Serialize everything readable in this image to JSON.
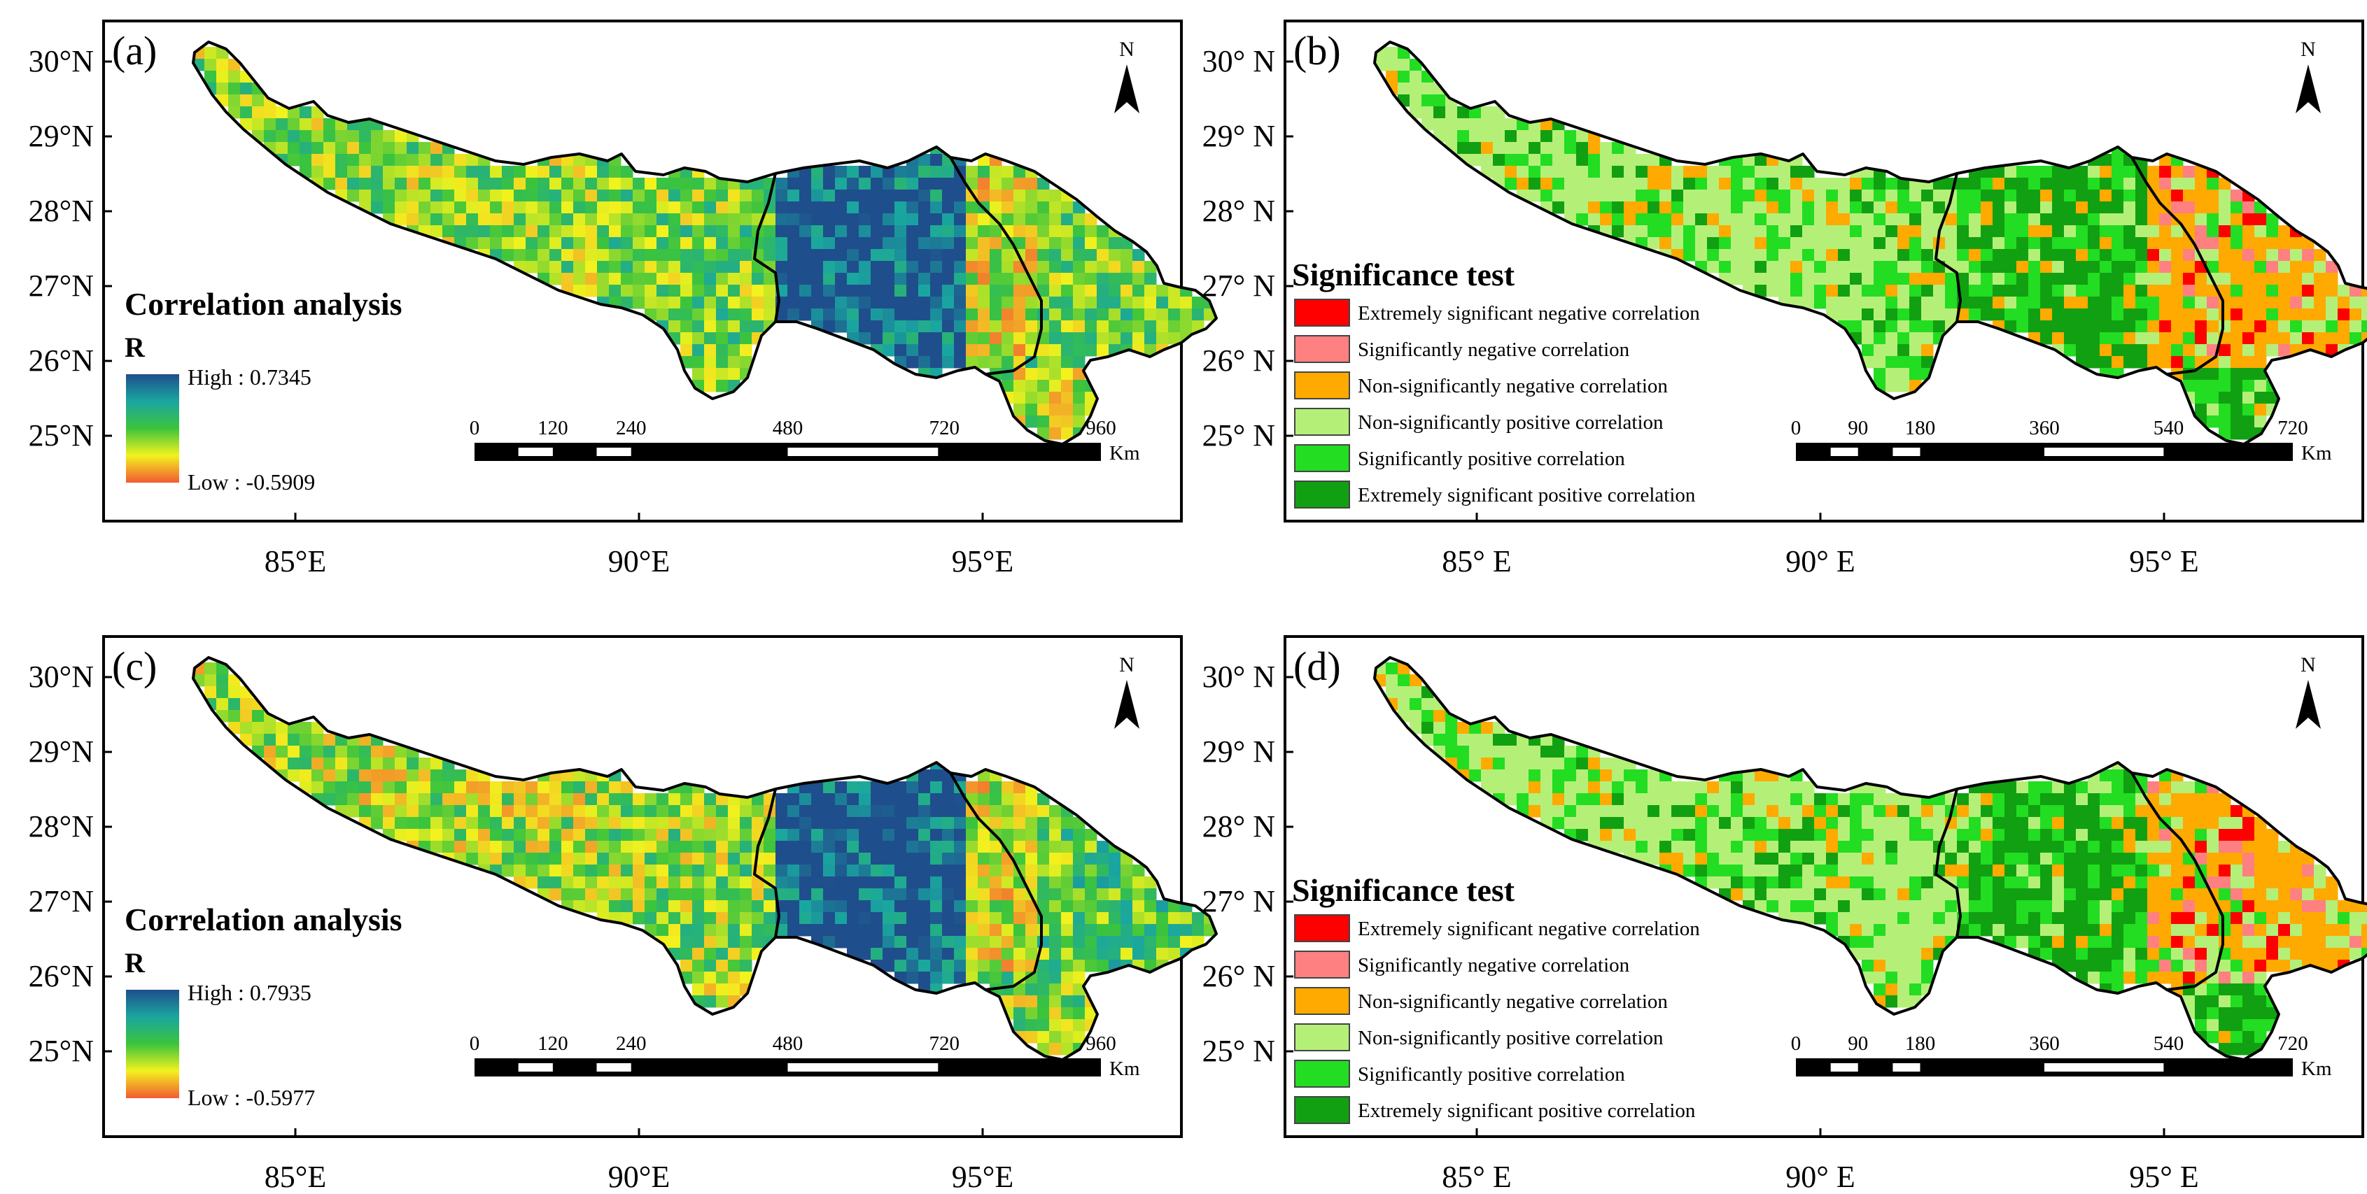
{
  "colors": {
    "corr_high": "#1f4e8c",
    "corr_mid_high": "#1aa6a0",
    "corr_mid": "#3cc43c",
    "corr_mid_low": "#f2f21e",
    "corr_low": "#f25a32",
    "sig_ext_neg": "#ff0000",
    "sig_neg": "#ff8080",
    "sig_nonsig_neg": "#ffaa00",
    "sig_nonsig_pos": "#b4f078",
    "sig_pos": "#22dd22",
    "sig_ext_pos": "#11a011"
  },
  "panels": [
    {
      "label": "(a)",
      "type": "correlation",
      "north_label": "N",
      "north_icon": "north-arrow-icon",
      "lat_labels": [
        "30°N",
        "29°N",
        "28°N",
        "27°N",
        "26°N",
        "25°N"
      ],
      "lon_labels": [
        "85°E",
        "90°E",
        "95°E"
      ],
      "legend": {
        "title": "Correlation analysis",
        "symbol": "R",
        "high": "High : 0.7345",
        "low": "Low : -0.5909"
      },
      "scale": {
        "ticks": [
          "0",
          "120",
          "240",
          "480",
          "720",
          "960"
        ],
        "unit": "Km"
      },
      "region_tint": {
        "west": 0.45,
        "center": 0.62,
        "east": 0.95,
        "east_lower": 0.4,
        "south": 0.5
      }
    },
    {
      "label": "(b)",
      "type": "significance",
      "north_label": "N",
      "north_icon": "north-arrow-icon",
      "lat_labels": [
        "30° N",
        "29° N",
        "28° N",
        "27° N",
        "26° N",
        "25° N"
      ],
      "lon_labels": [
        "85° E",
        "90° E",
        "95° E"
      ],
      "legend": {
        "title": "Significance test",
        "classes": [
          "Extremely significant negative correlation",
          "Significantly negative correlation",
          "Non-significantly negative correlation",
          "Non-significantly positive correlation",
          "Significantly positive correlation",
          "Extremely significant positive correlation"
        ]
      },
      "scale": {
        "ticks": [
          "0",
          "90",
          "180",
          "360",
          "540",
          "720"
        ],
        "unit": "Km"
      }
    },
    {
      "label": "(c)",
      "type": "correlation",
      "north_label": "N",
      "north_icon": "north-arrow-icon",
      "lat_labels": [
        "30°N",
        "29°N",
        "28°N",
        "27°N",
        "26°N",
        "25°N"
      ],
      "lon_labels": [
        "85°E",
        "90°E",
        "95°E"
      ],
      "legend": {
        "title": "Correlation analysis",
        "symbol": "R",
        "high": "High : 0.7935",
        "low": "Low : -0.5977"
      },
      "scale": {
        "ticks": [
          "0",
          "120",
          "240",
          "480",
          "720",
          "960"
        ],
        "unit": "Km"
      },
      "region_tint": {
        "west": 0.4,
        "center": 0.58,
        "east": 1.0,
        "east_lower": 0.45,
        "south": 0.55
      }
    },
    {
      "label": "(d)",
      "type": "significance",
      "north_label": "N",
      "north_icon": "north-arrow-icon",
      "lat_labels": [
        "30° N",
        "29° N",
        "28° N",
        "27° N",
        "26° N",
        "25° N"
      ],
      "lon_labels": [
        "85° E",
        "90° E",
        "95° E"
      ],
      "legend": {
        "title": "Significance test",
        "classes": [
          "Extremely significant negative correlation",
          "Significantly negative correlation",
          "Non-significantly negative correlation",
          "Non-significantly positive correlation",
          "Significantly positive correlation",
          "Extremely significant positive correlation"
        ]
      },
      "scale": {
        "ticks": [
          "0",
          "90",
          "180",
          "360",
          "540",
          "720"
        ],
        "unit": "Km"
      }
    }
  ]
}
